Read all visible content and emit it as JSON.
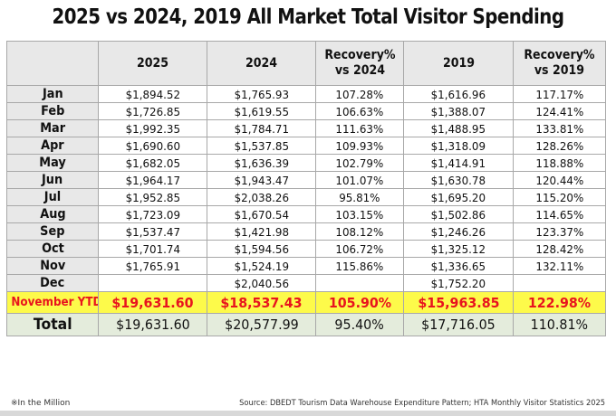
{
  "title": "2025 vs 2024, 2019 All Market Total Visitor Spending",
  "table": {
    "headers": [
      "",
      "2025",
      "2024",
      "Recovery%\nvs 2024",
      "2019",
      "Recovery%\nvs 2019"
    ],
    "header_lines": {
      "c3": [
        "Recovery%",
        "vs 2024"
      ],
      "c5": [
        "Recovery%",
        "vs 2019"
      ]
    },
    "rows": [
      {
        "month": "Jan",
        "y2025": "$1,894.52",
        "y2024": "$1,765.93",
        "rec2024": "107.28%",
        "y2019": "$1,616.96",
        "rec2019": "117.17%"
      },
      {
        "month": "Feb",
        "y2025": "$1,726.85",
        "y2024": "$1,619.55",
        "rec2024": "106.63%",
        "y2019": "$1,388.07",
        "rec2019": "124.41%"
      },
      {
        "month": "Mar",
        "y2025": "$1,992.35",
        "y2024": "$1,784.71",
        "rec2024": "111.63%",
        "y2019": "$1,488.95",
        "rec2019": "133.81%"
      },
      {
        "month": "Apr",
        "y2025": "$1,690.60",
        "y2024": "$1,537.85",
        "rec2024": "109.93%",
        "y2019": "$1,318.09",
        "rec2019": "128.26%"
      },
      {
        "month": "May",
        "y2025": "$1,682.05",
        "y2024": "$1,636.39",
        "rec2024": "102.79%",
        "y2019": "$1,414.91",
        "rec2019": "118.88%"
      },
      {
        "month": "Jun",
        "y2025": "$1,964.17",
        "y2024": "$1,943.47",
        "rec2024": "101.07%",
        "y2019": "$1,630.78",
        "rec2019": "120.44%"
      },
      {
        "month": "Jul",
        "y2025": "$1,952.85",
        "y2024": "$2,038.26",
        "rec2024": "95.81%",
        "y2019": "$1,695.20",
        "rec2019": "115.20%"
      },
      {
        "month": "Aug",
        "y2025": "$1,723.09",
        "y2024": "$1,670.54",
        "rec2024": "103.15%",
        "y2019": "$1,502.86",
        "rec2019": "114.65%"
      },
      {
        "month": "Sep",
        "y2025": "$1,537.47",
        "y2024": "$1,421.98",
        "rec2024": "108.12%",
        "y2019": "$1,246.26",
        "rec2019": "123.37%"
      },
      {
        "month": "Oct",
        "y2025": "$1,701.74",
        "y2024": "$1,594.56",
        "rec2024": "106.72%",
        "y2019": "$1,325.12",
        "rec2019": "128.42%"
      },
      {
        "month": "Nov",
        "y2025": "$1,765.91",
        "y2024": "$1,524.19",
        "rec2024": "115.86%",
        "y2019": "$1,336.65",
        "rec2019": "132.11%"
      },
      {
        "month": "Dec",
        "y2025": "",
        "y2024": "$2,040.56",
        "rec2024": "",
        "y2019": "$1,752.20",
        "rec2019": ""
      }
    ],
    "ytd": {
      "month": "November YTD",
      "y2025": "$19,631.60",
      "y2024": "$18,537.43",
      "rec2024": "105.90%",
      "y2019": "$15,963.85",
      "rec2019": "122.98%"
    },
    "total": {
      "month": "Total",
      "y2025": "$19,631.60",
      "y2024": "$20,577.99",
      "rec2024": "95.40%",
      "y2019": "$17,716.05",
      "rec2019": "110.81%"
    }
  },
  "footnote": "※In the Million",
  "source": "Source: DBEDT Tourism Data Warehouse Expenditure Pattern; HTA Monthly Visitor Statistics 2025",
  "colors": {
    "header_bg": "#e8e8e8",
    "ytd_bg": "#fdfa4a",
    "ytd_text": "#e8141e",
    "total_bg": "#e4ecdc",
    "border": "#a8a8a8"
  }
}
